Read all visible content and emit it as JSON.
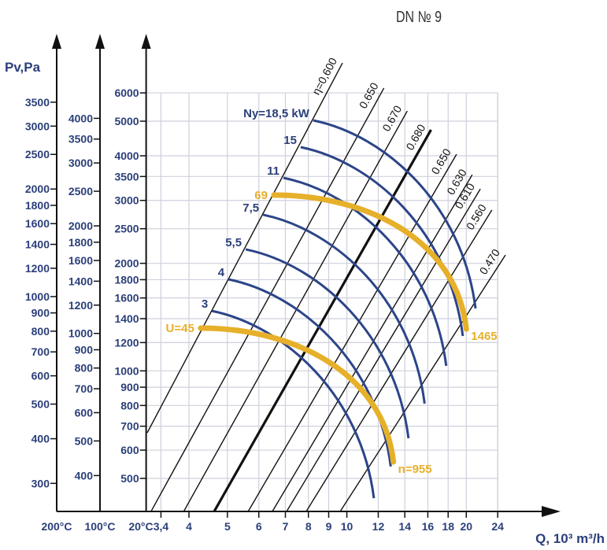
{
  "chart_data": {
    "type": "line",
    "title": "DN № 9",
    "xlabel": "Q, 10³ m³/h",
    "ylabel": "Pv,Pa",
    "x_scale": "log",
    "y_scale": "log",
    "xlim": [
      3.12,
      25
    ],
    "ylim": [
      404,
      6000
    ],
    "grid": true,
    "x_ticks": [
      {
        "value": 3.4,
        "label": "3,4"
      },
      {
        "value": 4,
        "label": "4"
      },
      {
        "value": 5,
        "label": "5"
      },
      {
        "value": 6,
        "label": "6"
      },
      {
        "value": 7,
        "label": "7"
      },
      {
        "value": 8,
        "label": "8"
      },
      {
        "value": 9,
        "label": "9"
      },
      {
        "value": 10,
        "label": "10"
      },
      {
        "value": 12,
        "label": "12"
      },
      {
        "value": 14,
        "label": "14"
      },
      {
        "value": 16,
        "label": "16"
      },
      {
        "value": 18,
        "label": "18"
      },
      {
        "value": 20,
        "label": "20"
      },
      {
        "value": 24,
        "label": "24"
      }
    ],
    "y_axes": [
      {
        "temperature": "200°C",
        "ticks": [
          3500,
          3000,
          2500,
          2000,
          1800,
          1600,
          1400,
          1200,
          1000,
          900,
          800,
          700,
          600,
          500,
          400,
          300
        ]
      },
      {
        "temperature": "100°C",
        "ticks": [
          4000,
          3500,
          3000,
          2500,
          2000,
          1800,
          1600,
          1400,
          1200,
          1000,
          900,
          800,
          700,
          600,
          500,
          400
        ]
      },
      {
        "temperature": "20°C",
        "ticks": [
          6000,
          5000,
          4000,
          3500,
          3000,
          2500,
          2000,
          1800,
          1600,
          1400,
          1200,
          1000,
          900,
          800,
          700,
          600,
          500
        ]
      }
    ],
    "efficiency_lines": [
      {
        "label": "η=0,600",
        "from": [
          3.14,
          671
        ],
        "to": [
          9.75,
          7275
        ],
        "thick": false
      },
      {
        "label": "0.650",
        "from": [
          3.21,
          404
        ],
        "to": [
          12.4,
          6190
        ],
        "thick": false
      },
      {
        "label": "0.670",
        "from": [
          3.88,
          404
        ],
        "to": [
          14.2,
          5340
        ],
        "thick": false
      },
      {
        "label": "0.680",
        "from": [
          4.63,
          404
        ],
        "to": [
          16.3,
          4730
        ],
        "thick": true
      },
      {
        "label": "0.650",
        "from": [
          5.64,
          404
        ],
        "to": [
          18.9,
          4040
        ],
        "thick": false
      },
      {
        "label": "0.630",
        "from": [
          6.49,
          404
        ],
        "to": [
          20.7,
          3540
        ],
        "thick": false
      },
      {
        "label": "0.610",
        "from": [
          7.05,
          404
        ],
        "to": [
          21.7,
          3230
        ],
        "thick": false
      },
      {
        "label": "0.560",
        "from": [
          7.9,
          404
        ],
        "to": [
          23.2,
          2820
        ],
        "thick": false
      },
      {
        "label": "0.470",
        "from": [
          9.62,
          404
        ],
        "to": [
          25.1,
          2110
        ],
        "thick": false
      }
    ],
    "power_curves": [
      {
        "label": "Ny=18,5 kW",
        "start": [
          8.23,
          5025
        ],
        "end": [
          21.1,
          1495
        ]
      },
      {
        "label": "15",
        "start": [
          7.65,
          4230
        ],
        "end": [
          19.6,
          1252
        ]
      },
      {
        "label": "11",
        "start": [
          6.92,
          3470
        ],
        "end": [
          17.8,
          1033
        ]
      },
      {
        "label": "7,5",
        "start": [
          6.15,
          2735
        ],
        "end": [
          15.7,
          810
        ]
      },
      {
        "label": "5,5",
        "start": [
          5.56,
          2188
        ],
        "end": [
          14.3,
          648
        ]
      },
      {
        "label": "4",
        "start": [
          5.03,
          1804
        ],
        "end": [
          12.9,
          540
        ]
      },
      {
        "label": "3",
        "start": [
          4.57,
          1472
        ],
        "end": [
          11.7,
          440
        ]
      }
    ],
    "speed_curves": [
      {
        "start_label": "69",
        "end_label": "1465",
        "start": [
          6.55,
          3105
        ],
        "end": [
          20.0,
          1310
        ]
      },
      {
        "start_label": "U=45",
        "end_label": "n=955",
        "start": [
          4.28,
          1317
        ],
        "end": [
          13.1,
          556
        ]
      }
    ],
    "colors": {
      "text": "#2b3f7a",
      "power_curve": "#2c4589",
      "speed_curve": "#e6b02a",
      "grid": "#cfd0dc",
      "axis": "#111111"
    }
  }
}
